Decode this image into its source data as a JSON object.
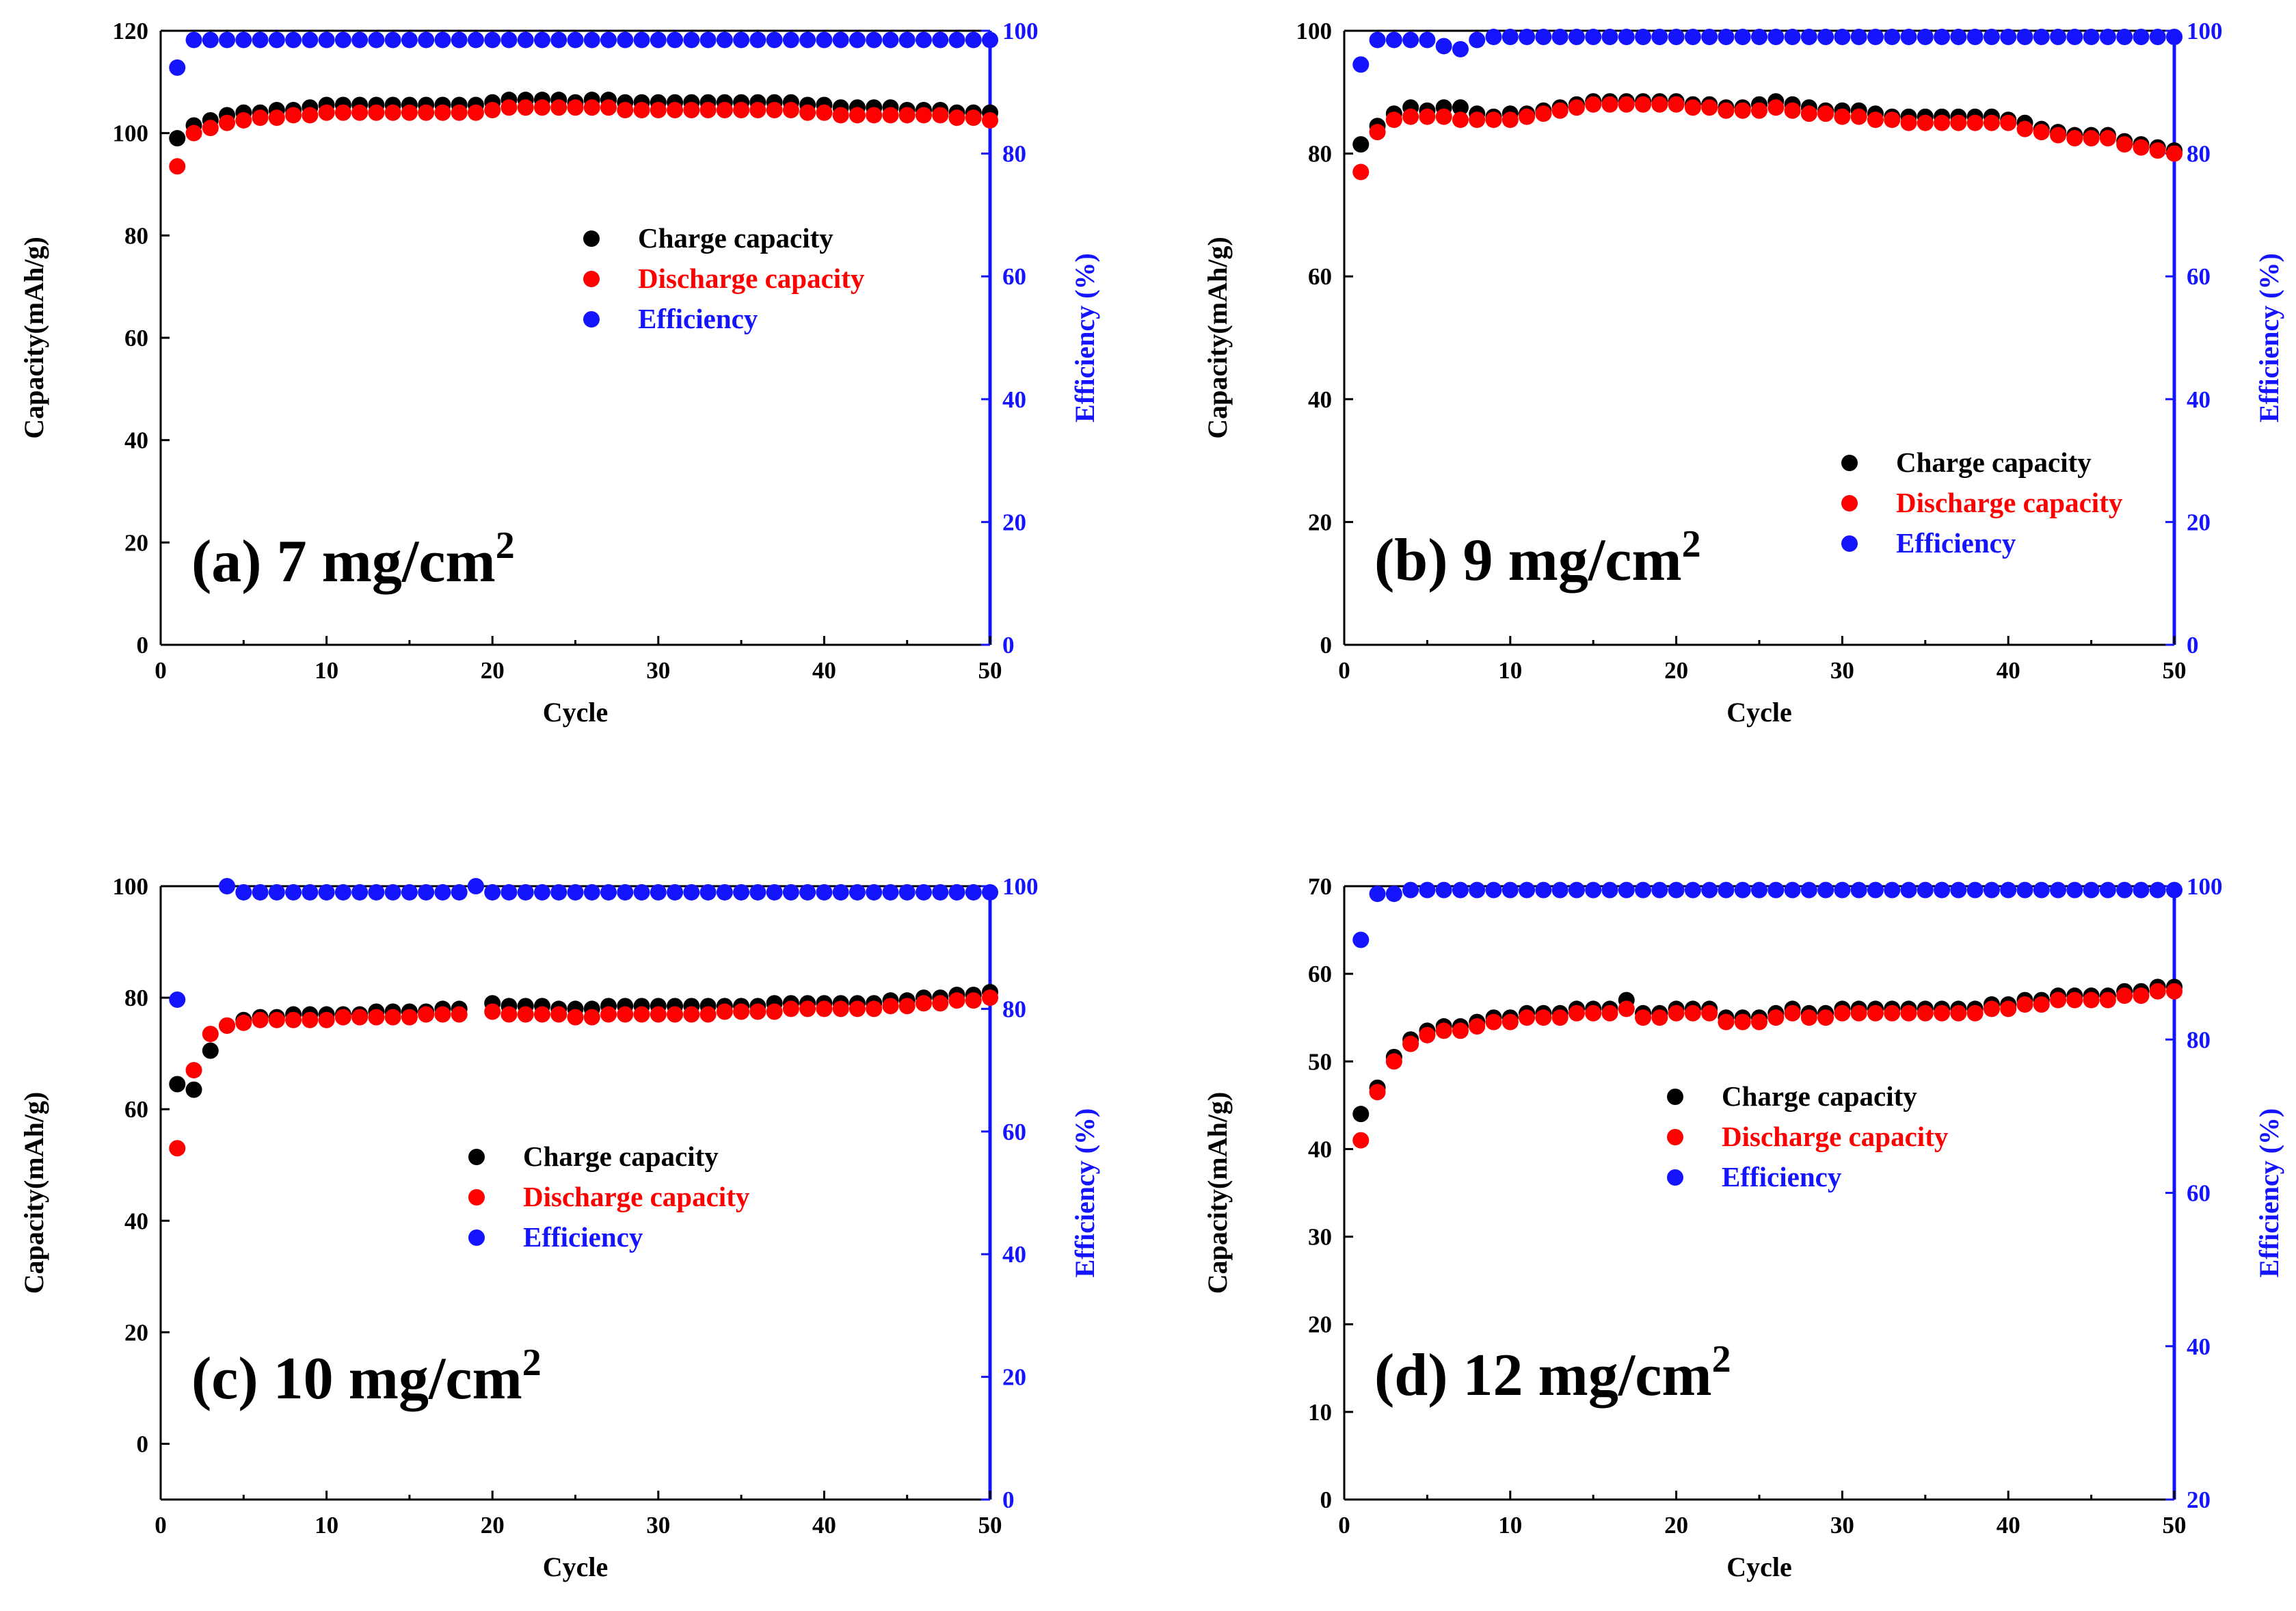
{
  "chart_data": [
    {
      "type": "scatter",
      "panel_label": "(a) 7 mg/cm",
      "panel_sup": "2",
      "xlabel": "Cycle",
      "ylabel": "Capacity(mAh/g)",
      "y2label": "Efficiency (%)",
      "xlim": [
        0,
        50
      ],
      "ylim": [
        0,
        120
      ],
      "y2lim": [
        0,
        100
      ],
      "xticks": [
        "0",
        "10",
        "20",
        "30",
        "40",
        "50"
      ],
      "yticks": [
        "0",
        "20",
        "40",
        "60",
        "80",
        "100",
        "120"
      ],
      "y2ticks": [
        "0",
        "20",
        "40",
        "60",
        "80",
        "100"
      ],
      "legend": [
        "Charge capacity",
        "Discharge capacity",
        "Efficiency"
      ],
      "legend_position": "center-right",
      "series": [
        {
          "name": "Charge capacity",
          "axis": "left",
          "color": "#000000",
          "values": [
            99,
            101.5,
            102.5,
            103.5,
            104,
            104,
            104.5,
            104.5,
            105,
            105.5,
            105.5,
            105.5,
            105.5,
            105.5,
            105.5,
            105.5,
            105.5,
            105.5,
            105.5,
            106,
            106.5,
            106.5,
            106.5,
            106.5,
            106,
            106.5,
            106.5,
            106,
            106,
            106,
            106,
            106,
            106,
            106,
            106,
            106,
            106,
            106,
            105.5,
            105.5,
            105,
            105,
            105,
            105,
            104.5,
            104.5,
            104.5,
            104,
            104,
            104
          ]
        },
        {
          "name": "Discharge capacity",
          "axis": "left",
          "color": "#ff0000",
          "values": [
            93.5,
            100,
            101,
            102,
            102.5,
            103,
            103,
            103.5,
            103.5,
            104,
            104,
            104,
            104,
            104,
            104,
            104,
            104,
            104,
            104,
            104.5,
            105,
            105,
            105,
            105,
            105,
            105,
            105,
            104.5,
            104.5,
            104.5,
            104.5,
            104.5,
            104.5,
            104.5,
            104.5,
            104.5,
            104.5,
            104.5,
            104,
            104,
            103.5,
            103.5,
            103.5,
            103.5,
            103.5,
            103.5,
            103.5,
            103,
            103,
            102.5
          ]
        },
        {
          "name": "Efficiency",
          "axis": "right",
          "color": "#1414ff",
          "values": [
            94,
            98.5,
            98.5,
            98.5,
            98.5,
            98.5,
            98.5,
            98.5,
            98.5,
            98.5,
            98.5,
            98.5,
            98.5,
            98.5,
            98.5,
            98.5,
            98.5,
            98.5,
            98.5,
            98.5,
            98.5,
            98.5,
            98.5,
            98.5,
            98.5,
            98.5,
            98.5,
            98.5,
            98.5,
            98.5,
            98.5,
            98.5,
            98.5,
            98.5,
            98.5,
            98.5,
            98.5,
            98.5,
            98.5,
            98.5,
            98.5,
            98.5,
            98.5,
            98.5,
            98.5,
            98.5,
            98.5,
            98.5,
            98.5,
            98.5
          ]
        }
      ]
    },
    {
      "type": "scatter",
      "panel_label": "(b) 9 mg/cm",
      "panel_sup": "2",
      "xlabel": "Cycle",
      "ylabel": "Capacity(mAh/g)",
      "y2label": "Efficiency (%)",
      "xlim": [
        0,
        50
      ],
      "ylim": [
        0,
        100
      ],
      "y2lim": [
        0,
        100
      ],
      "xticks": [
        "0",
        "10",
        "20",
        "30",
        "40",
        "50"
      ],
      "yticks": [
        "0",
        "20",
        "40",
        "60",
        "80",
        "100"
      ],
      "y2ticks": [
        "0",
        "20",
        "40",
        "60",
        "80",
        "100"
      ],
      "legend": [
        "Charge capacity",
        "Discharge capacity",
        "Efficiency"
      ],
      "legend_position": "lower-right",
      "series": [
        {
          "name": "Charge capacity",
          "axis": "left",
          "color": "#000000",
          "values": [
            81.5,
            84.5,
            86.5,
            87.5,
            87,
            87.5,
            87.5,
            86.5,
            86,
            86.5,
            86.5,
            87,
            87.5,
            88,
            88.5,
            88.5,
            88.5,
            88.5,
            88.5,
            88.5,
            88,
            88,
            87.5,
            87.5,
            88,
            88.5,
            88,
            87.5,
            87,
            87,
            87,
            86.5,
            86,
            86,
            86,
            86,
            86,
            86,
            86,
            85.5,
            85,
            84,
            83.5,
            83,
            83,
            83,
            82,
            81.5,
            81,
            80.5
          ]
        },
        {
          "name": "Discharge capacity",
          "axis": "left",
          "color": "#ff0000",
          "values": [
            77,
            83.5,
            85.5,
            86,
            86,
            86,
            85.5,
            85.5,
            85.5,
            85.5,
            86,
            86.5,
            87,
            87.5,
            88,
            88,
            88,
            88,
            88,
            88,
            87.5,
            87.5,
            87,
            87,
            87,
            87.5,
            87,
            86.5,
            86.5,
            86,
            86,
            85.5,
            85.5,
            85,
            85,
            85,
            85,
            85,
            85,
            85,
            84,
            83.5,
            83,
            82.5,
            82.5,
            82.5,
            81.5,
            81,
            80.5,
            80
          ]
        },
        {
          "name": "Efficiency",
          "axis": "right",
          "color": "#1414ff",
          "values": [
            94.5,
            98.5,
            98.5,
            98.5,
            98.5,
            97.5,
            97,
            98.5,
            99,
            99,
            99,
            99,
            99,
            99,
            99,
            99,
            99,
            99,
            99,
            99,
            99,
            99,
            99,
            99,
            99,
            99,
            99,
            99,
            99,
            99,
            99,
            99,
            99,
            99,
            99,
            99,
            99,
            99,
            99,
            99,
            99,
            99,
            99,
            99,
            99,
            99,
            99,
            99,
            99,
            99
          ]
        }
      ]
    },
    {
      "type": "scatter",
      "panel_label": "(c) 10 mg/cm",
      "panel_sup": "2",
      "xlabel": "Cycle",
      "ylabel": "Capacity(mAh/g)",
      "y2label": "Efficiency (%)",
      "xlim": [
        0,
        50
      ],
      "ylim": [
        -10,
        100
      ],
      "y2lim": [
        0,
        100
      ],
      "xticks": [
        "0",
        "10",
        "20",
        "30",
        "40",
        "50"
      ],
      "yticks": [
        "0",
        "20",
        "40",
        "60",
        "80",
        "100"
      ],
      "y2ticks": [
        "0",
        "20",
        "40",
        "60",
        "80",
        "100"
      ],
      "legend": [
        "Charge capacity",
        "Discharge capacity",
        "Efficiency"
      ],
      "legend_position": "center",
      "series": [
        {
          "name": "Charge capacity",
          "axis": "left",
          "color": "#000000",
          "values": [
            64.5,
            63.5,
            70.5,
            75,
            76,
            76.5,
            76.5,
            77,
            77,
            77,
            77,
            77,
            77.5,
            77.5,
            77.5,
            77.5,
            78,
            78,
            null,
            79,
            78.5,
            78.5,
            78.5,
            78,
            78,
            78,
            78.5,
            78.5,
            78.5,
            78.5,
            78.5,
            78.5,
            78.5,
            78.5,
            78.5,
            78.5,
            79,
            79,
            79,
            79,
            79,
            79,
            79,
            79.5,
            79.5,
            80,
            80,
            80.5,
            80.5,
            81
          ]
        },
        {
          "name": "Discharge capacity",
          "axis": "left",
          "color": "#ff0000",
          "values": [
            53,
            67,
            73.5,
            75,
            75.5,
            76,
            76,
            76,
            76,
            76,
            76.5,
            76.5,
            76.5,
            76.5,
            76.5,
            77,
            77,
            77,
            null,
            77.5,
            77,
            77,
            77,
            77,
            76.5,
            76.5,
            77,
            77,
            77,
            77,
            77,
            77,
            77,
            77.5,
            77.5,
            77.5,
            77.5,
            78,
            78,
            78,
            78,
            78,
            78,
            78.5,
            78.5,
            79,
            79,
            79.5,
            79.5,
            80
          ]
        },
        {
          "name": "Efficiency",
          "axis": "right",
          "color": "#1414ff",
          "values": [
            81.5,
            null,
            null,
            100,
            99,
            99,
            99,
            99,
            99,
            99,
            99,
            99,
            99,
            99,
            99,
            99,
            99,
            99,
            100,
            99,
            99,
            99,
            99,
            99,
            99,
            99,
            99,
            99,
            99,
            99,
            99,
            99,
            99,
            99,
            99,
            99,
            99,
            99,
            99,
            99,
            99,
            99,
            99,
            99,
            99,
            99,
            99,
            99,
            99,
            99
          ]
        }
      ]
    },
    {
      "type": "scatter",
      "panel_label": "(d) 12 mg/cm",
      "panel_sup": "2",
      "xlabel": "Cycle",
      "ylabel": "Capacity(mAh/g)",
      "y2label": "Efficiency (%)",
      "xlim": [
        0,
        50
      ],
      "ylim": [
        0,
        70
      ],
      "y2lim": [
        20,
        100
      ],
      "xticks": [
        "0",
        "10",
        "20",
        "30",
        "40",
        "50"
      ],
      "yticks": [
        "0",
        "10",
        "20",
        "30",
        "40",
        "50",
        "60",
        "70"
      ],
      "y2ticks": [
        "20",
        "40",
        "60",
        "80",
        "100"
      ],
      "legend": [
        "Charge capacity",
        "Discharge capacity",
        "Efficiency"
      ],
      "legend_position": "center",
      "series": [
        {
          "name": "Charge capacity",
          "axis": "left",
          "color": "#000000",
          "values": [
            44,
            47,
            50.5,
            52.5,
            53.5,
            54,
            54,
            54.5,
            55,
            55,
            55.5,
            55.5,
            55.5,
            56,
            56,
            56,
            57,
            55.5,
            55.5,
            56,
            56,
            56,
            55,
            55,
            55,
            55.5,
            56,
            55.5,
            55.5,
            56,
            56,
            56,
            56,
            56,
            56,
            56,
            56,
            56,
            56.5,
            56.5,
            57,
            57,
            57.5,
            57.5,
            57.5,
            57.5,
            58,
            58,
            58.5,
            58.5
          ]
        },
        {
          "name": "Discharge capacity",
          "axis": "left",
          "color": "#ff0000",
          "values": [
            41,
            46.5,
            50,
            52,
            53,
            53.5,
            53.5,
            54,
            54.5,
            54.5,
            55,
            55,
            55,
            55.5,
            55.5,
            55.5,
            56,
            55,
            55,
            55.5,
            55.5,
            55.5,
            54.5,
            54.5,
            54.5,
            55,
            55.5,
            55,
            55,
            55.5,
            55.5,
            55.5,
            55.5,
            55.5,
            55.5,
            55.5,
            55.5,
            55.5,
            56,
            56,
            56.5,
            56.5,
            57,
            57,
            57,
            57,
            57.5,
            57.5,
            58,
            58
          ]
        },
        {
          "name": "Efficiency",
          "axis": "right",
          "color": "#1414ff",
          "values": [
            93,
            99,
            99,
            99.5,
            99.5,
            99.5,
            99.5,
            99.5,
            99.5,
            99.5,
            99.5,
            99.5,
            99.5,
            99.5,
            99.5,
            99.5,
            99.5,
            99.5,
            99.5,
            99.5,
            99.5,
            99.5,
            99.5,
            99.5,
            99.5,
            99.5,
            99.5,
            99.5,
            99.5,
            99.5,
            99.5,
            99.5,
            99.5,
            99.5,
            99.5,
            99.5,
            99.5,
            99.5,
            99.5,
            99.5,
            99.5,
            99.5,
            99.5,
            99.5,
            99.5,
            99.5,
            99.5,
            99.5,
            99.5,
            99.5
          ]
        }
      ]
    }
  ]
}
